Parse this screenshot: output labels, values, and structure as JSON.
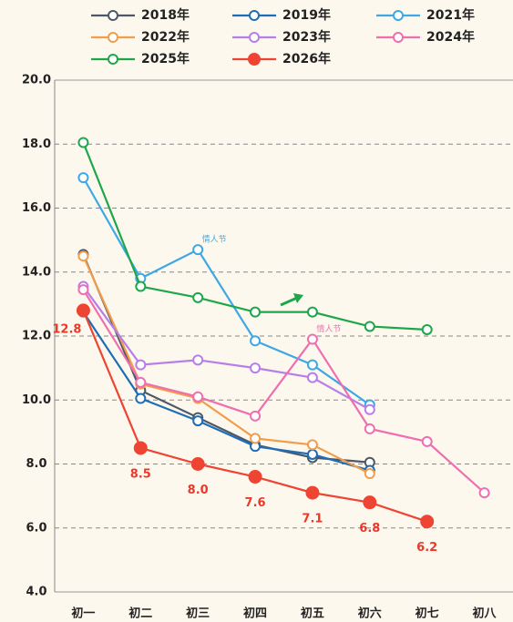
{
  "chart_data": {
    "type": "line",
    "categories": [
      "初一",
      "初二",
      "初三",
      "初四",
      "初五",
      "初六",
      "初七",
      "初八"
    ],
    "ylim": [
      4,
      20
    ],
    "yticks": [
      {
        "value": 4,
        "label": "4.0"
      },
      {
        "value": 6,
        "label": "6.0"
      },
      {
        "value": 8,
        "label": "8.0"
      },
      {
        "value": 10,
        "label": "10.0"
      },
      {
        "value": 12,
        "label": "12.0"
      },
      {
        "value": 14,
        "label": "14.0"
      },
      {
        "value": 16,
        "label": "16.0"
      },
      {
        "value": 18,
        "label": "18.0"
      },
      {
        "value": 20,
        "label": "20.0"
      }
    ],
    "grid": true,
    "series": [
      {
        "name": "2018年",
        "color": "#4d5866",
        "values": [
          14.55,
          10.3,
          9.45,
          8.6,
          8.2,
          8.05,
          null,
          null
        ]
      },
      {
        "name": "2019年",
        "color": "#1f6db5",
        "values": [
          12.75,
          10.05,
          9.35,
          8.55,
          8.3,
          7.8,
          null,
          null
        ]
      },
      {
        "name": "2021年",
        "color": "#3ea8e5",
        "values": [
          16.95,
          13.8,
          14.7,
          11.85,
          11.1,
          9.85,
          null,
          null
        ]
      },
      {
        "name": "2022年",
        "color": "#f29d4b",
        "values": [
          14.5,
          10.5,
          10.05,
          8.8,
          8.6,
          7.7,
          null,
          null
        ]
      },
      {
        "name": "2023年",
        "color": "#b77ee8",
        "values": [
          13.55,
          11.1,
          11.25,
          11.0,
          10.7,
          9.7,
          null,
          null
        ]
      },
      {
        "name": "2024年",
        "color": "#ee6eb0",
        "values": [
          13.45,
          10.55,
          10.1,
          9.5,
          11.9,
          9.1,
          8.7,
          7.1
        ]
      },
      {
        "name": "2025年",
        "color": "#1ea64b",
        "values": [
          18.05,
          13.55,
          13.2,
          12.75,
          12.75,
          12.3,
          12.2,
          null
        ]
      },
      {
        "name": "2026年",
        "color": "#ee4433",
        "filled": true,
        "values": [
          12.8,
          8.5,
          8.0,
          7.6,
          7.1,
          6.8,
          6.2,
          null
        ],
        "value_labels": [
          "12.8",
          "8.5",
          "8.0",
          "7.6",
          "7.1",
          "6.8",
          "6.2",
          null
        ]
      }
    ],
    "annotations": [
      {
        "text": "情人节",
        "series": 2,
        "index": 2
      },
      {
        "text": "情人节",
        "series": 5,
        "index": 4
      }
    ]
  }
}
